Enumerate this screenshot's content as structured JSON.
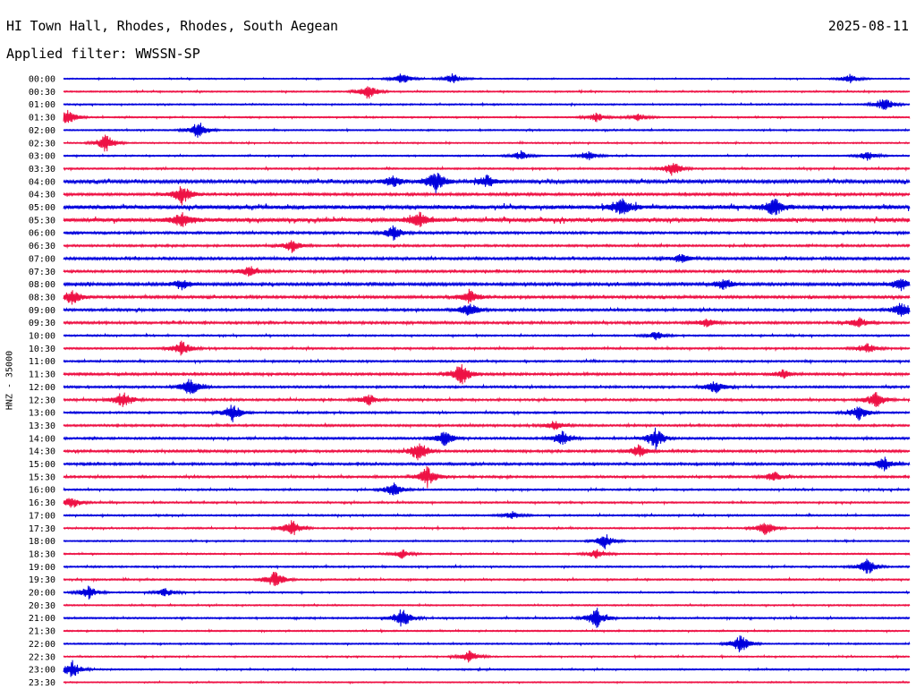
{
  "header": {
    "station": "HI Town Hall, Rhodes, Rhodes, South Aegean",
    "date": "2025-08-11",
    "filter": "Applied filter: WWSSN-SP"
  },
  "channel_label": "HNZ - 35000",
  "colors": {
    "even_trace": "#0000dd",
    "odd_trace": "#ee1144",
    "text": "#000000",
    "background": "#ffffff"
  },
  "chart_data": {
    "type": "helicorder",
    "title": "HI Town Hall, Rhodes, Rhodes, South Aegean",
    "ylabel": "HNZ - 35000",
    "xlabel": "",
    "row_labels": [
      "00:00",
      "00:30",
      "01:00",
      "01:30",
      "02:00",
      "02:30",
      "03:00",
      "03:30",
      "04:00",
      "04:30",
      "05:00",
      "05:30",
      "06:00",
      "06:30",
      "07:00",
      "07:30",
      "08:00",
      "08:30",
      "09:00",
      "09:30",
      "10:00",
      "10:30",
      "11:00",
      "11:30",
      "12:00",
      "12:30",
      "13:00",
      "13:30",
      "14:00",
      "14:30",
      "15:00",
      "15:30",
      "16:00",
      "16:30",
      "17:00",
      "17:30",
      "18:00",
      "18:30",
      "19:00",
      "19:30",
      "20:00",
      "20:30",
      "21:00",
      "21:30",
      "22:00",
      "22:30",
      "23:00",
      "23:30"
    ],
    "row_noise_level": [
      0.25,
      0.3,
      0.3,
      0.3,
      0.3,
      0.3,
      0.3,
      0.35,
      0.7,
      0.55,
      0.9,
      0.85,
      0.5,
      0.45,
      0.55,
      0.5,
      0.6,
      0.55,
      0.5,
      0.5,
      0.35,
      0.4,
      0.4,
      0.5,
      0.45,
      0.45,
      0.4,
      0.45,
      0.45,
      0.5,
      0.5,
      0.45,
      0.35,
      0.35,
      0.35,
      0.35,
      0.3,
      0.3,
      0.35,
      0.35,
      0.3,
      0.3,
      0.35,
      0.3,
      0.3,
      0.3,
      0.3,
      0.25
    ],
    "events": [
      {
        "row": "00:00",
        "t": 0.4,
        "amp": 0.8
      },
      {
        "row": "00:00",
        "t": 0.46,
        "amp": 0.7
      },
      {
        "row": "00:00",
        "t": 0.93,
        "amp": 0.6
      },
      {
        "row": "00:30",
        "t": 0.36,
        "amp": 1.0
      },
      {
        "row": "01:00",
        "t": 0.97,
        "amp": 1.0
      },
      {
        "row": "01:30",
        "t": 0.005,
        "amp": 1.0
      },
      {
        "row": "01:30",
        "t": 0.63,
        "amp": 0.6
      },
      {
        "row": "01:30",
        "t": 0.68,
        "amp": 0.5
      },
      {
        "row": "02:00",
        "t": 0.16,
        "amp": 1.2
      },
      {
        "row": "02:30",
        "t": 0.05,
        "amp": 1.2
      },
      {
        "row": "03:00",
        "t": 0.54,
        "amp": 0.6
      },
      {
        "row": "03:00",
        "t": 0.62,
        "amp": 0.6
      },
      {
        "row": "03:00",
        "t": 0.95,
        "amp": 0.6
      },
      {
        "row": "03:30",
        "t": 0.72,
        "amp": 1.0
      },
      {
        "row": "04:00",
        "t": 0.44,
        "amp": 1.4
      },
      {
        "row": "04:00",
        "t": 0.39,
        "amp": 0.8
      },
      {
        "row": "04:00",
        "t": 0.5,
        "amp": 0.8
      },
      {
        "row": "04:30",
        "t": 0.14,
        "amp": 1.4
      },
      {
        "row": "05:00",
        "t": 0.66,
        "amp": 1.2
      },
      {
        "row": "05:00",
        "t": 0.84,
        "amp": 1.2
      },
      {
        "row": "05:30",
        "t": 0.14,
        "amp": 1.0
      },
      {
        "row": "05:30",
        "t": 0.42,
        "amp": 1.0
      },
      {
        "row": "06:00",
        "t": 0.39,
        "amp": 0.9
      },
      {
        "row": "06:30",
        "t": 0.27,
        "amp": 0.8
      },
      {
        "row": "07:00",
        "t": 0.73,
        "amp": 0.6
      },
      {
        "row": "07:30",
        "t": 0.22,
        "amp": 0.7
      },
      {
        "row": "08:00",
        "t": 0.14,
        "amp": 0.7
      },
      {
        "row": "08:00",
        "t": 0.78,
        "amp": 0.7
      },
      {
        "row": "08:00",
        "t": 0.99,
        "amp": 0.9
      },
      {
        "row": "08:30",
        "t": 0.01,
        "amp": 1.0
      },
      {
        "row": "08:30",
        "t": 0.48,
        "amp": 1.0
      },
      {
        "row": "09:00",
        "t": 0.48,
        "amp": 1.0
      },
      {
        "row": "09:00",
        "t": 0.99,
        "amp": 1.0
      },
      {
        "row": "09:30",
        "t": 0.76,
        "amp": 0.6
      },
      {
        "row": "09:30",
        "t": 0.94,
        "amp": 0.7
      },
      {
        "row": "10:00",
        "t": 0.7,
        "amp": 0.6
      },
      {
        "row": "10:30",
        "t": 0.14,
        "amp": 1.0
      },
      {
        "row": "10:30",
        "t": 0.95,
        "amp": 0.7
      },
      {
        "row": "11:30",
        "t": 0.47,
        "amp": 1.6
      },
      {
        "row": "11:30",
        "t": 0.85,
        "amp": 0.6
      },
      {
        "row": "12:00",
        "t": 0.15,
        "amp": 1.2
      },
      {
        "row": "12:00",
        "t": 0.77,
        "amp": 0.9
      },
      {
        "row": "12:30",
        "t": 0.07,
        "amp": 1.2
      },
      {
        "row": "12:30",
        "t": 0.36,
        "amp": 0.7
      },
      {
        "row": "12:30",
        "t": 0.96,
        "amp": 1.2
      },
      {
        "row": "13:00",
        "t": 0.2,
        "amp": 1.2
      },
      {
        "row": "13:00",
        "t": 0.94,
        "amp": 1.0
      },
      {
        "row": "13:30",
        "t": 0.58,
        "amp": 0.6
      },
      {
        "row": "14:00",
        "t": 0.45,
        "amp": 1.0
      },
      {
        "row": "14:00",
        "t": 0.59,
        "amp": 1.0
      },
      {
        "row": "14:00",
        "t": 0.7,
        "amp": 1.4
      },
      {
        "row": "14:30",
        "t": 0.42,
        "amp": 1.4
      },
      {
        "row": "14:30",
        "t": 0.68,
        "amp": 0.8
      },
      {
        "row": "15:00",
        "t": 0.97,
        "amp": 0.9
      },
      {
        "row": "15:30",
        "t": 0.43,
        "amp": 1.4
      },
      {
        "row": "15:30",
        "t": 0.84,
        "amp": 0.7
      },
      {
        "row": "16:00",
        "t": 0.39,
        "amp": 1.0
      },
      {
        "row": "16:30",
        "t": 0.01,
        "amp": 0.8
      },
      {
        "row": "17:00",
        "t": 0.53,
        "amp": 0.5
      },
      {
        "row": "17:30",
        "t": 0.27,
        "amp": 1.2
      },
      {
        "row": "17:30",
        "t": 0.83,
        "amp": 1.0
      },
      {
        "row": "18:00",
        "t": 0.64,
        "amp": 1.0
      },
      {
        "row": "18:30",
        "t": 0.4,
        "amp": 0.6
      },
      {
        "row": "18:30",
        "t": 0.63,
        "amp": 0.6
      },
      {
        "row": "19:00",
        "t": 0.95,
        "amp": 1.1
      },
      {
        "row": "19:30",
        "t": 0.25,
        "amp": 1.2
      },
      {
        "row": "20:00",
        "t": 0.03,
        "amp": 0.9
      },
      {
        "row": "20:00",
        "t": 0.12,
        "amp": 0.6
      },
      {
        "row": "21:00",
        "t": 0.4,
        "amp": 1.4
      },
      {
        "row": "21:00",
        "t": 0.63,
        "amp": 1.4
      },
      {
        "row": "22:00",
        "t": 0.8,
        "amp": 1.2
      },
      {
        "row": "22:30",
        "t": 0.48,
        "amp": 0.8
      },
      {
        "row": "23:00",
        "t": 0.01,
        "amp": 1.2
      }
    ]
  }
}
